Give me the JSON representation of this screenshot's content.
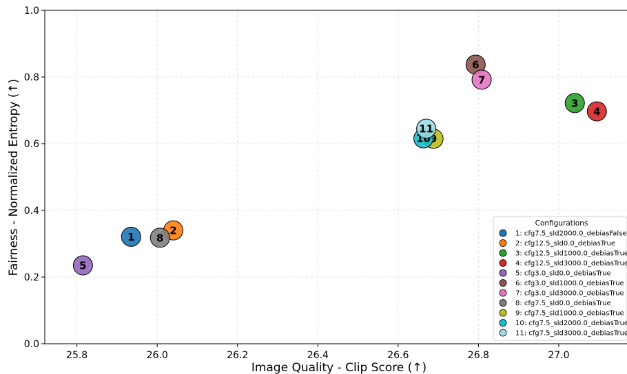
{
  "chart_data": {
    "type": "scatter",
    "title": "",
    "xlabel": "Image Quality - Clip Score (↑)",
    "ylabel": "Fairness - Normalized Entropy (↑)",
    "xlim": [
      25.72,
      27.17
    ],
    "ylim": [
      0.0,
      1.0
    ],
    "xticks": [
      25.8,
      26.0,
      26.2,
      26.4,
      26.6,
      26.8,
      27.0
    ],
    "xtick_labels": [
      "25.8",
      "26.0",
      "26.2",
      "26.4",
      "26.6",
      "26.8",
      "27.0"
    ],
    "yticks": [
      0.0,
      0.2,
      0.4,
      0.6,
      0.8,
      1.0
    ],
    "ytick_labels": [
      "0.0",
      "0.2",
      "0.4",
      "0.6",
      "0.8",
      "1.0"
    ],
    "grid": true,
    "legend_title": "Configurations",
    "legend_position": "lower-right",
    "points": [
      {
        "id": "1",
        "x": 25.935,
        "y": 0.321,
        "color": "#1f77b4",
        "legend": "1: cfg7.5_sld2000.0_debiasFalse"
      },
      {
        "id": "2",
        "x": 26.04,
        "y": 0.34,
        "color": "#ff7f0e",
        "legend": "2: cfg12.5_sld0.0_debiasTrue"
      },
      {
        "id": "3",
        "x": 27.04,
        "y": 0.722,
        "color": "#2ca02c",
        "legend": "3: cfg12.5_sld1000.0_debiasTrue"
      },
      {
        "id": "4",
        "x": 27.095,
        "y": 0.697,
        "color": "#d62728",
        "legend": "4: cfg12.5_sld3000.0_debiasTrue"
      },
      {
        "id": "5",
        "x": 25.815,
        "y": 0.235,
        "color": "#9467bd",
        "legend": "5: cfg3.0_sld0.0_debiasTrue"
      },
      {
        "id": "6",
        "x": 26.793,
        "y": 0.837,
        "color": "#8c564b",
        "legend": "6: cfg3.0_sld1000.0_debiasTrue"
      },
      {
        "id": "7",
        "x": 26.808,
        "y": 0.792,
        "color": "#e377c2",
        "legend": "7: cfg3.0_sld3000.0_debiasTrue"
      },
      {
        "id": "8",
        "x": 26.007,
        "y": 0.318,
        "color": "#7f7f7f",
        "legend": "8: cfg7.5_sld0.0_debiasTrue"
      },
      {
        "id": "9",
        "x": 26.688,
        "y": 0.615,
        "color": "#bcbd22",
        "legend": "9: cfg7.5_sld1000.0_debiasTrue"
      },
      {
        "id": "10",
        "x": 26.663,
        "y": 0.616,
        "color": "#17becf",
        "legend": "10: cfg7.5_sld2000.0_debiasTrue"
      },
      {
        "id": "11",
        "x": 26.67,
        "y": 0.645,
        "color": "#9edae5",
        "legend": "11: cfg7.5_sld3000.0_debiasTrue"
      }
    ],
    "draw_order": [
      "1",
      "2",
      "3",
      "4",
      "5",
      "6",
      "7",
      "8",
      "9",
      "10",
      "11"
    ]
  }
}
